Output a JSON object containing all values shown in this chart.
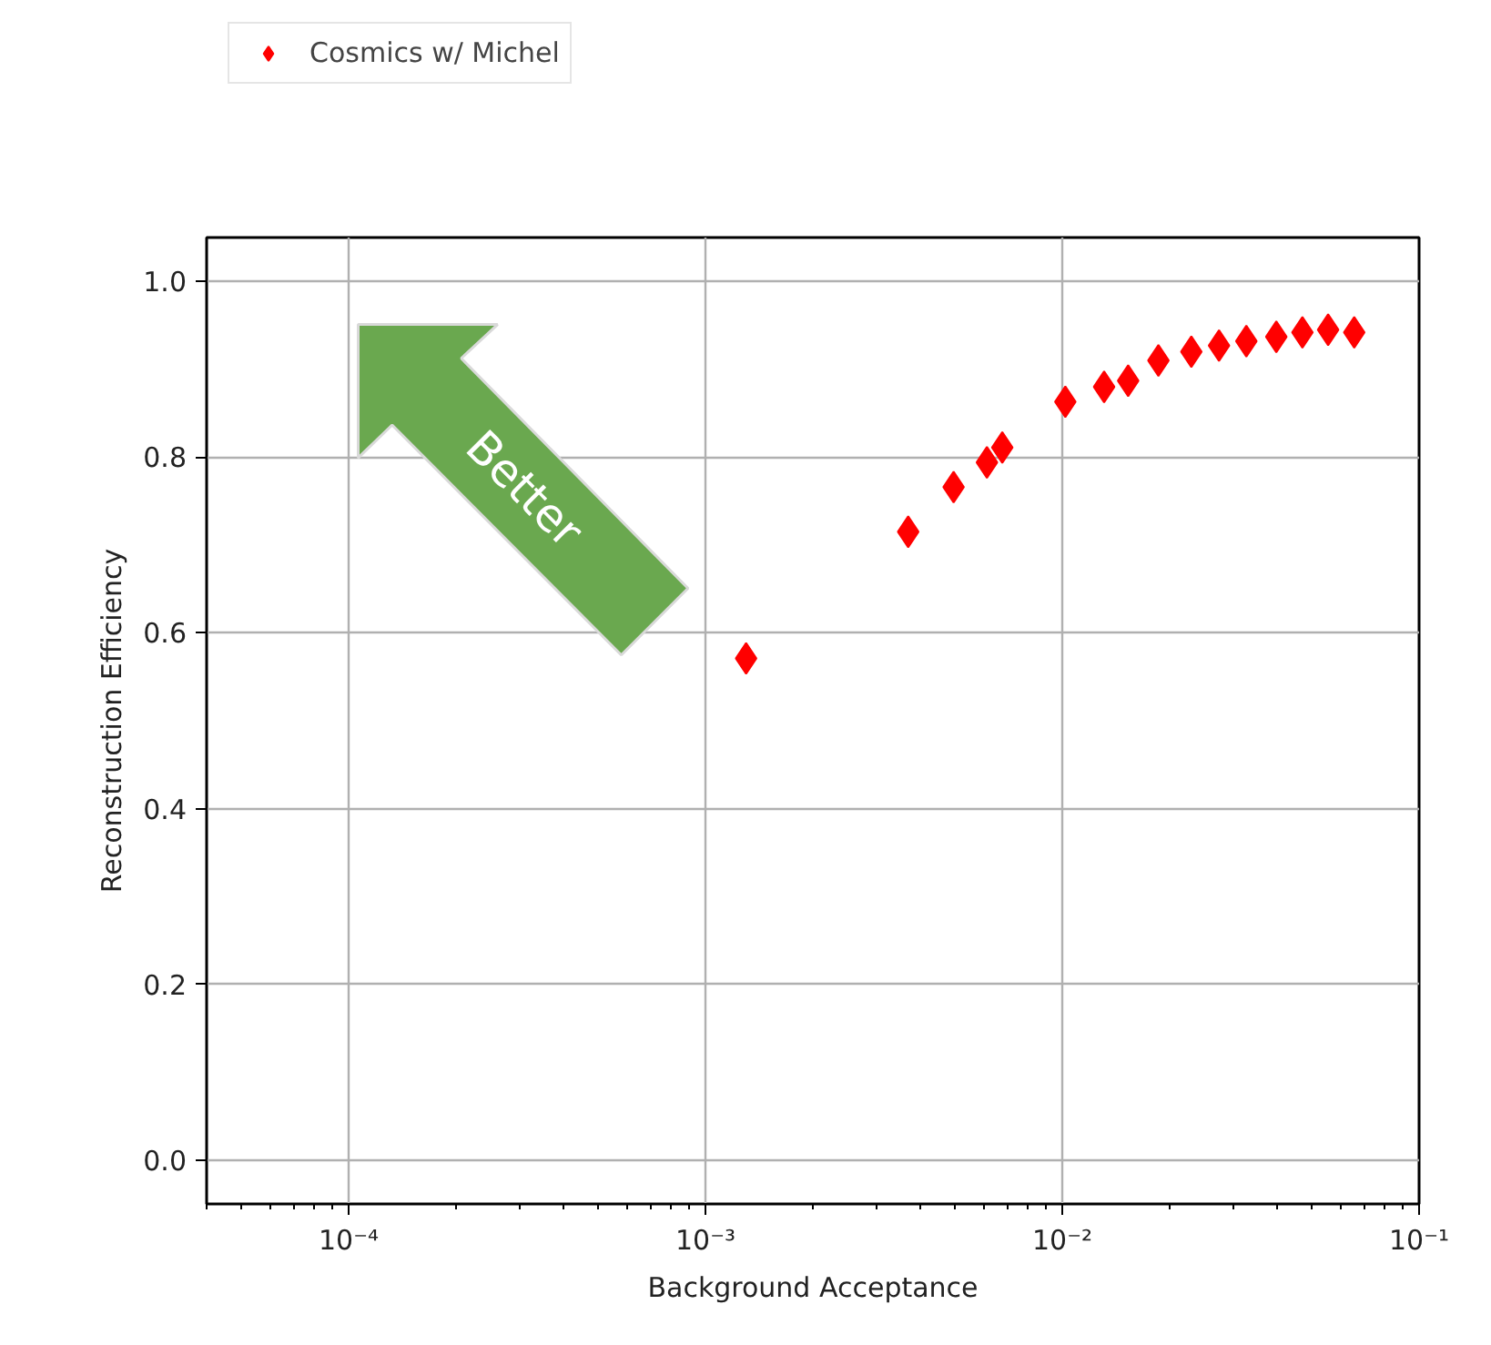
{
  "chart_data": {
    "type": "scatter",
    "xlabel": "Background Acceptance",
    "ylabel": "Reconstruction Efficiency",
    "annotations": [
      "Better"
    ],
    "series": [
      {
        "name": "Cosmics w/ Michel",
        "color": "#ff0000",
        "x": [
          0.0013,
          0.0037,
          0.00496,
          0.00615,
          0.00679,
          0.0102,
          0.0131,
          0.0153,
          0.0186,
          0.023,
          0.0275,
          0.0328,
          0.0398,
          0.0471,
          0.0556,
          0.0658
        ],
        "values": [
          0.571,
          0.715,
          0.766,
          0.794,
          0.811,
          0.863,
          0.88,
          0.887,
          0.91,
          0.92,
          0.927,
          0.932,
          0.937,
          0.942,
          0.945,
          0.942
        ]
      }
    ],
    "log": "x",
    "xlim": [
      4e-05,
      0.1
    ],
    "ylim": [
      -0.05,
      1.05
    ],
    "xticks": [
      {
        "value": 0.0001,
        "label": "10⁻⁴"
      },
      {
        "value": 0.001,
        "label": "10⁻³"
      },
      {
        "value": 0.01,
        "label": "10⁻²"
      },
      {
        "value": 0.1,
        "label": "10⁻¹"
      }
    ],
    "yticks": [
      {
        "value": 0,
        "label": "0.0"
      },
      {
        "value": 0.2,
        "label": "0.2"
      },
      {
        "value": 0.4,
        "label": "0.4"
      },
      {
        "value": 0.6,
        "label": "0.6"
      },
      {
        "value": 0.8,
        "label": "0.8"
      },
      {
        "value": 1,
        "label": "1.0"
      }
    ],
    "grid": true,
    "legend": "top left",
    "marker": "diamond"
  }
}
